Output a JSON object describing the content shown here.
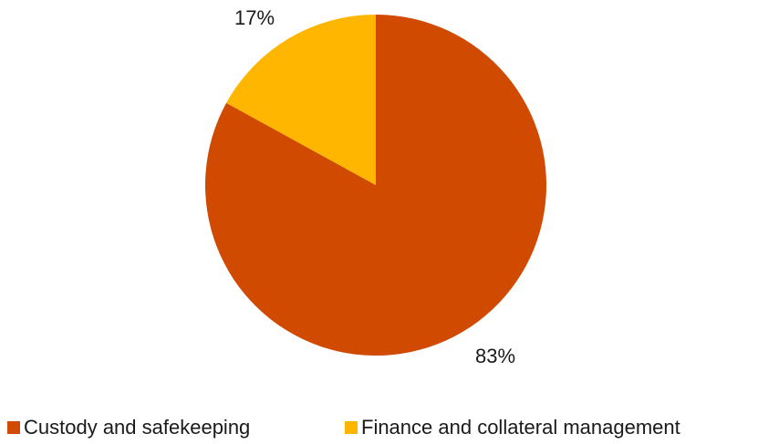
{
  "chart_data": {
    "type": "pie",
    "title": "",
    "categories": [
      "Custody and safekeeping",
      "Finance and collateral management"
    ],
    "values": [
      83,
      17
    ],
    "labels": [
      "83%",
      "17%"
    ],
    "colors": [
      "#D04A02",
      "#FFB600"
    ],
    "legend": "bottom"
  }
}
